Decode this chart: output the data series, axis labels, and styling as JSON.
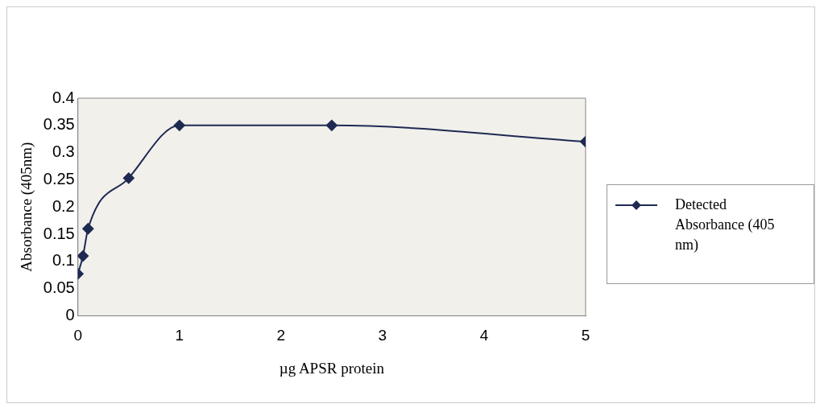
{
  "chart_data": {
    "type": "line",
    "xlabel": "µg APSR protein",
    "ylabel": "Absorbance (405nm)",
    "x": [
      0,
      0.05,
      0.1,
      0.5,
      1,
      2.5,
      5
    ],
    "series": [
      {
        "name": "Detected Absorbance (405 nm)",
        "color": "#1f2a52",
        "values": [
          0.077,
          0.11,
          0.16,
          0.253,
          0.35,
          0.35,
          0.32
        ]
      }
    ],
    "xlim": [
      0,
      5
    ],
    "xticks": [
      0,
      1,
      2,
      3,
      4,
      5
    ],
    "ylim": [
      0,
      0.4
    ],
    "yticks": [
      0,
      0.05,
      0.1,
      0.15,
      0.2,
      0.25,
      0.3,
      0.35,
      0.4
    ],
    "grid": false,
    "legend": "right",
    "marker": "diamond",
    "line_style": "solid"
  }
}
